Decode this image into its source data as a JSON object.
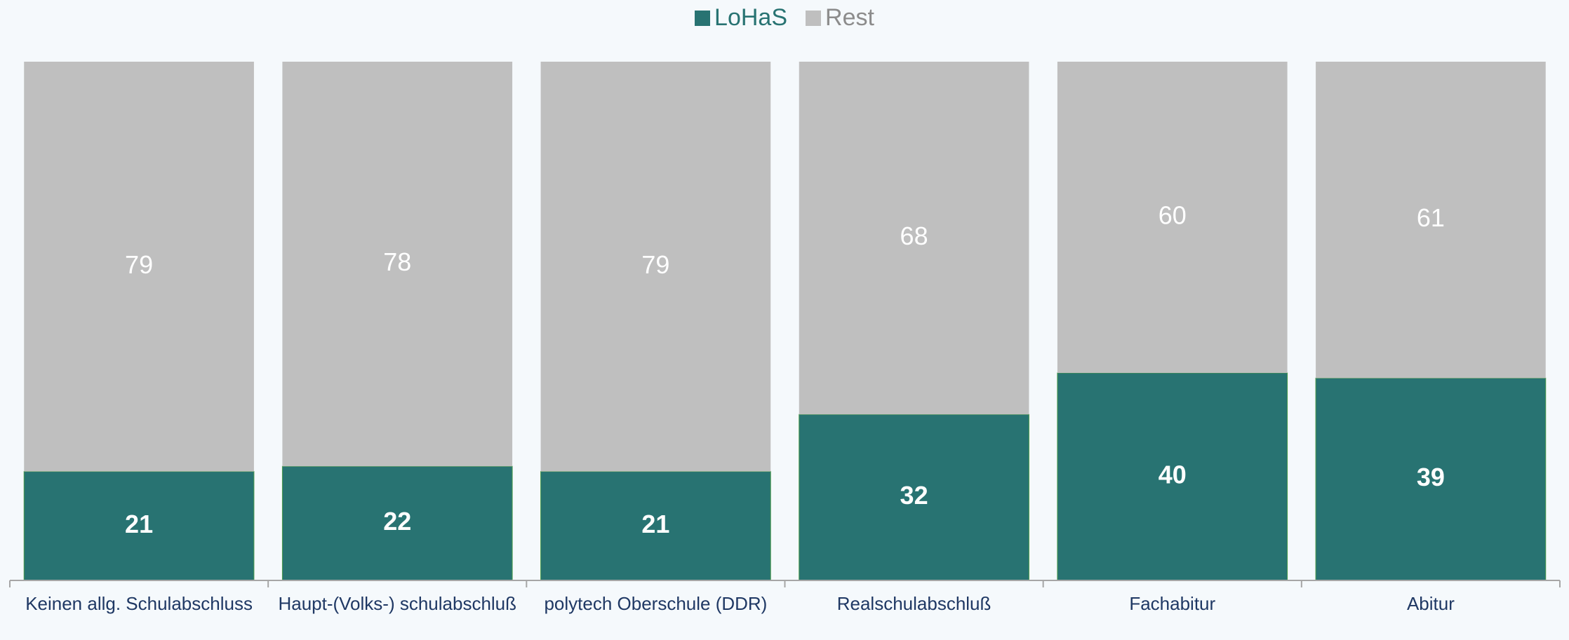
{
  "chart_data": {
    "type": "stacked_bar",
    "categories": [
      "Keinen allg. Schulabschluss",
      "Haupt-(Volks-) schulabschluß",
      "polytech Oberschule (DDR)",
      "Realschulabschluß",
      "Fachabitur",
      "Abitur"
    ],
    "series": [
      {
        "name": "LoHaS",
        "color": "#287372",
        "values": [
          21,
          22,
          21,
          32,
          40,
          39
        ]
      },
      {
        "name": "Rest",
        "color": "#bfbfbf",
        "values": [
          79,
          78,
          79,
          68,
          60,
          61
        ]
      }
    ],
    "ylim": [
      0,
      100
    ],
    "legend": "top"
  }
}
